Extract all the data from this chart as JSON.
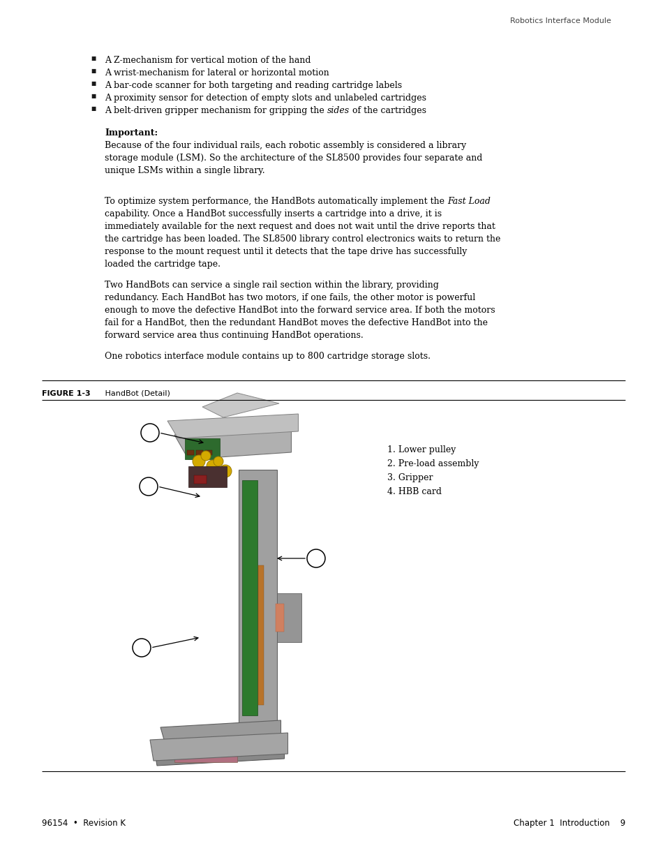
{
  "page_header_right": "Robotics Interface Module",
  "bullet_items": [
    "A Z-mechanism for vertical motion of the hand",
    "A wrist-mechanism for lateral or horizontal motion",
    "A bar-code scanner for both targeting and reading cartridge labels",
    "A proximity sensor for detection of empty slots and unlabeled cartridges",
    [
      "A belt-driven gripper mechanism for gripping the ",
      "sides",
      " of the cartridges"
    ]
  ],
  "important_label": "Important:",
  "important_text": [
    "Because of the four individual rails, each robotic assembly is considered a library",
    "storage module (LSM). So the architecture of the SL8500 provides four separate and",
    "unique LSMs within a single library."
  ],
  "para1_lines": [
    [
      "To optimize system performance, the HandBots automatically implement the ",
      "Fast Load"
    ],
    "capability. Once a HandBot successfully inserts a cartridge into a drive, it is",
    "immediately available for the next request and does not wait until the drive reports that",
    "the cartridge has been loaded. The SL8500 library control electronics waits to return the",
    "response to the mount request until it detects that the tape drive has successfully",
    "loaded the cartridge tape."
  ],
  "para2_lines": [
    "Two HandBots can service a single rail section within the library, providing",
    "redundancy. Each HandBot has two motors, if one fails, the other motor is powerful",
    "enough to move the defective HandBot into the forward service area. If both the motors",
    "fail for a HandBot, then the redundant HandBot moves the defective HandBot into the",
    "forward service area thus continuing HandBot operations."
  ],
  "para3": "One robotics interface module contains up to 800 cartridge storage slots.",
  "figure_label": "FIGURE 1-3",
  "figure_title": "   HandBot (Detail)",
  "callouts": [
    "1. Lower pulley",
    "2. Pre-load assembly",
    "3. Gripper",
    "4. HBB card"
  ],
  "footer_left": "96154  •  Revision K",
  "footer_right": "Chapter 1  Introduction    9",
  "bg_color": "#ffffff",
  "text_color": "#000000"
}
